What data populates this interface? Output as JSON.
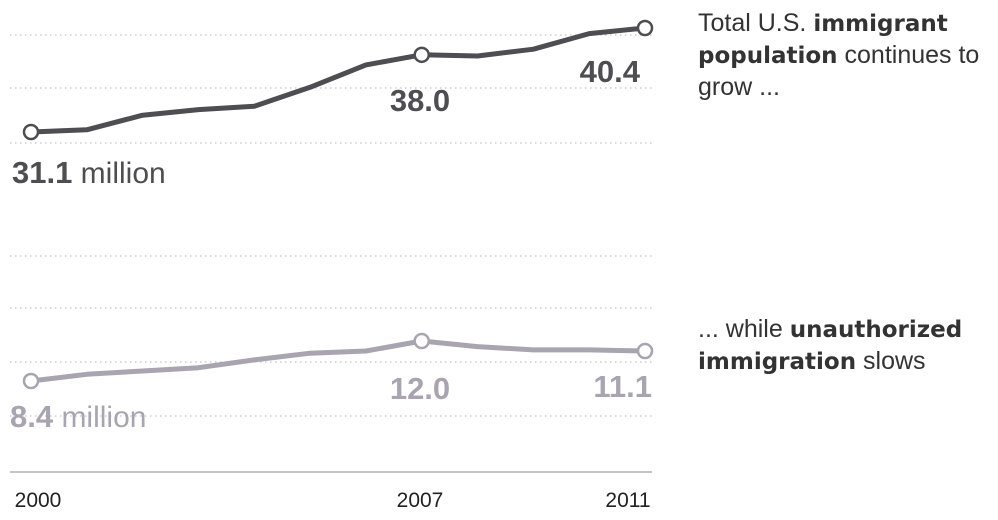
{
  "chart_data": {
    "type": "line",
    "x": [
      2000,
      2001,
      2002,
      2003,
      2004,
      2005,
      2006,
      2007,
      2008,
      2009,
      2010,
      2011
    ],
    "ticks": [
      "2000",
      "2007",
      "2011"
    ],
    "series": [
      {
        "key": "total",
        "values": [
          31.1,
          31.3,
          32.6,
          33.1,
          33.4,
          35.1,
          37.1,
          38.0,
          37.9,
          38.5,
          39.9,
          40.4
        ],
        "color": "#4d4d52",
        "labels": {
          "first": "31.1",
          "first_unit": "million",
          "mid": "38.0",
          "last": "40.4"
        },
        "annotation": {
          "pre": "Total U.S. ",
          "bold": "immigrant population",
          "post": " continues to grow ..."
        }
      },
      {
        "key": "unauthorized",
        "values": [
          8.4,
          9.0,
          9.3,
          9.6,
          10.3,
          10.9,
          11.1,
          12.0,
          11.5,
          11.2,
          11.2,
          11.1
        ],
        "color": "#a8a4b0",
        "labels": {
          "first": "8.4",
          "first_unit": "million",
          "mid": "12.0",
          "last": "11.1"
        },
        "annotation": {
          "pre": "... while ",
          "bold": "unauthorized immigration",
          "post": " slows"
        }
      }
    ],
    "highlight_years": [
      2000,
      2007,
      2011
    ],
    "grid": "dotted horizontal",
    "colors": {
      "axis": "#b0b0b0",
      "grid": "#c4c4c4",
      "text": "#333333"
    }
  }
}
